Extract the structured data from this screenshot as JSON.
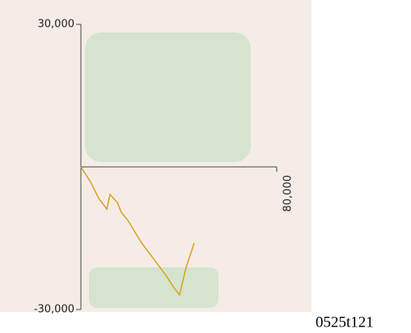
{
  "chart_data": {
    "type": "line",
    "x": [
      0,
      4000,
      7300,
      10600,
      11900,
      14900,
      16500,
      19200,
      24800,
      29800,
      34700,
      38000,
      40300,
      43000,
      46300
    ],
    "values": [
      0,
      -3200,
      -6650,
      -8870,
      -5800,
      -7500,
      -9550,
      -11250,
      -16000,
      -19400,
      -22800,
      -25400,
      -26900,
      -21100,
      -16000
    ],
    "color": "#d9a21b",
    "xlim": [
      0,
      80000
    ],
    "xticks": [
      {
        "value": 80000,
        "label": "80,000"
      }
    ],
    "ylim": [
      -30000,
      30000
    ],
    "yticks": [
      {
        "value": 30000,
        "label": "30,000"
      },
      {
        "value": -30000,
        "label": "-30,000"
      }
    ],
    "annotation": "0525t121"
  }
}
